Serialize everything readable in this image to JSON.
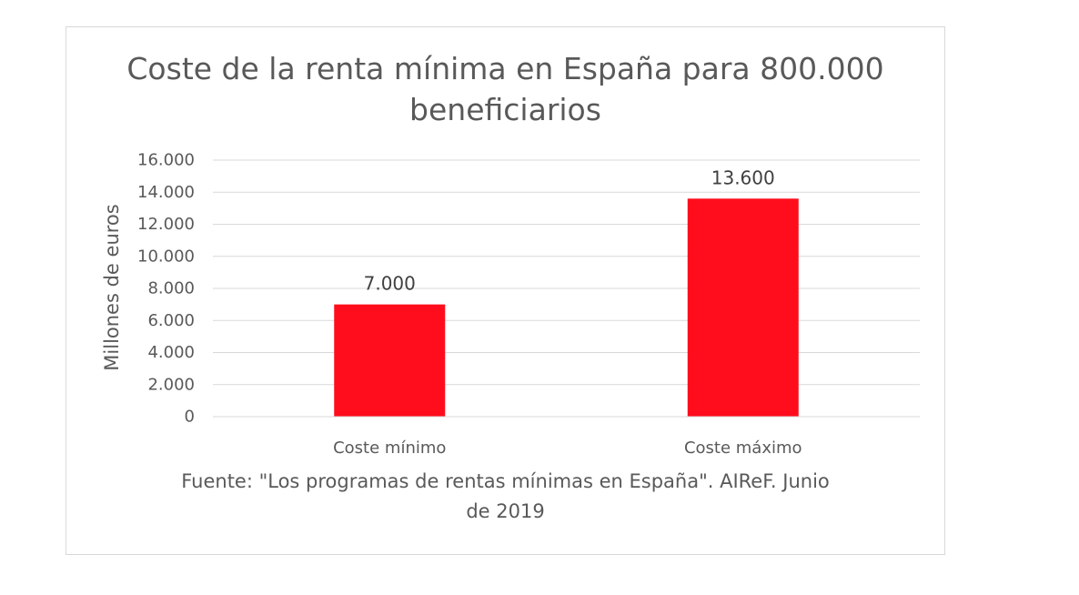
{
  "chart_data": {
    "type": "bar",
    "title_lines": [
      "Coste de la renta mínima en España para 800.000",
      "beneficiarios"
    ],
    "title": "Coste de la renta mínima en España para 800.000 beneficiarios",
    "xlabel": "",
    "ylabel": "Millones de euros",
    "categories": [
      "Coste mínimo",
      "Coste máximo"
    ],
    "values": [
      7000,
      13600
    ],
    "data_labels": [
      "7.000",
      "13.600"
    ],
    "ylim": [
      0,
      16000
    ],
    "ytick_values": [
      0,
      2000,
      4000,
      6000,
      8000,
      10000,
      12000,
      14000,
      16000
    ],
    "ytick_labels": [
      "0",
      "2.000",
      "4.000",
      "6.000",
      "8.000",
      "10.000",
      "12.000",
      "14.000",
      "16.000"
    ],
    "grid": true,
    "bar_color": "#ff0d1c",
    "source_lines": [
      "Fuente: \"Los programas de rentas mínimas en España\". AIReF. Junio",
      "de 2019"
    ]
  }
}
